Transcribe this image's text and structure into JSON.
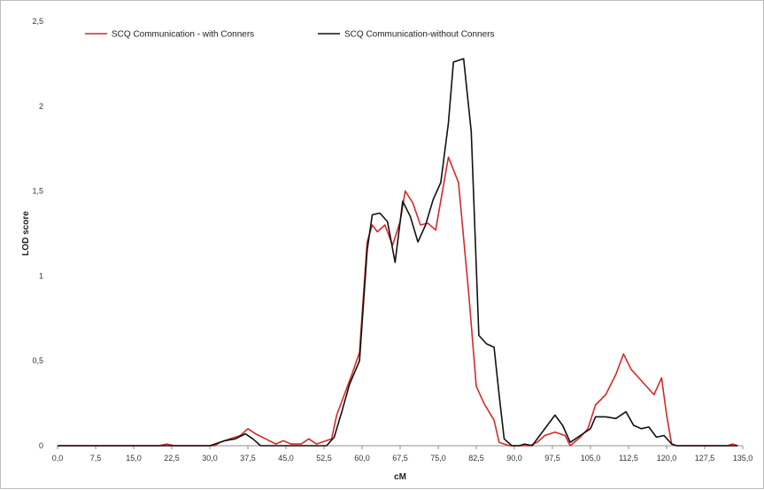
{
  "chart_data": {
    "type": "line",
    "xlabel": "cM",
    "ylabel": "LOD score",
    "xlim": [
      0,
      135
    ],
    "ylim": [
      0,
      2.5
    ],
    "x_ticks": [
      0,
      7.5,
      15,
      22.5,
      30,
      37.5,
      45,
      52.5,
      60,
      67.5,
      75,
      82.5,
      90,
      97.5,
      105,
      112.5,
      120,
      127.5,
      135
    ],
    "x_tick_labels": [
      "0,0",
      "7,5",
      "15,0",
      "22,5",
      "30,0",
      "37,5",
      "45,0",
      "52,5",
      "60,0",
      "67,5",
      "75,0",
      "82,5",
      "90,0",
      "97,5",
      "105,0",
      "112,5",
      "120,0",
      "127,5",
      "135,0"
    ],
    "y_ticks": [
      0,
      0.5,
      1,
      1.5,
      2,
      2.5
    ],
    "y_tick_labels": [
      "0",
      "0,5",
      "1",
      "1,5",
      "2",
      "2,5"
    ],
    "grid": false,
    "legend_position": "top-left",
    "series": [
      {
        "name": "SCQ Communication - with Conners",
        "color": "#d42a2a",
        "points": [
          [
            0,
            0
          ],
          [
            20,
            0
          ],
          [
            21.5,
            0.01
          ],
          [
            23,
            0
          ],
          [
            31,
            0
          ],
          [
            32,
            0.02
          ],
          [
            34,
            0.04
          ],
          [
            36,
            0.06
          ],
          [
            37.5,
            0.1
          ],
          [
            39,
            0.07
          ],
          [
            41,
            0.04
          ],
          [
            43,
            0.01
          ],
          [
            44.5,
            0.03
          ],
          [
            46,
            0.01
          ],
          [
            48,
            0.01
          ],
          [
            49.5,
            0.04
          ],
          [
            51,
            0.01
          ],
          [
            53,
            0.03
          ],
          [
            54,
            0.04
          ],
          [
            55,
            0.18
          ],
          [
            56.5,
            0.3
          ],
          [
            58,
            0.42
          ],
          [
            59.5,
            0.55
          ],
          [
            61,
            1.2
          ],
          [
            62,
            1.3
          ],
          [
            63,
            1.26
          ],
          [
            64.5,
            1.3
          ],
          [
            66,
            1.18
          ],
          [
            67.5,
            1.32
          ],
          [
            68.5,
            1.5
          ],
          [
            70,
            1.43
          ],
          [
            71.5,
            1.3
          ],
          [
            73,
            1.31
          ],
          [
            74.5,
            1.27
          ],
          [
            77,
            1.7
          ],
          [
            79,
            1.55
          ],
          [
            81,
            0.9
          ],
          [
            82.5,
            0.35
          ],
          [
            84,
            0.25
          ],
          [
            86,
            0.15
          ],
          [
            87,
            0.02
          ],
          [
            89,
            0
          ],
          [
            93,
            0
          ],
          [
            94.5,
            0.02
          ],
          [
            96,
            0.06
          ],
          [
            98,
            0.08
          ],
          [
            100,
            0.06
          ],
          [
            101,
            0
          ],
          [
            103,
            0.05
          ],
          [
            104.5,
            0.1
          ],
          [
            106,
            0.24
          ],
          [
            108,
            0.3
          ],
          [
            110,
            0.42
          ],
          [
            111.5,
            0.54
          ],
          [
            113,
            0.45
          ],
          [
            114.5,
            0.4
          ],
          [
            116,
            0.35
          ],
          [
            117.5,
            0.3
          ],
          [
            119,
            0.4
          ],
          [
            120,
            0.18
          ],
          [
            121,
            0.01
          ],
          [
            122,
            0
          ],
          [
            132,
            0
          ],
          [
            133,
            0.01
          ],
          [
            134,
            0
          ]
        ]
      },
      {
        "name": "SCQ Communication-without Conners",
        "color": "#111111",
        "points": [
          [
            0,
            0
          ],
          [
            30,
            0
          ],
          [
            31,
            0.01
          ],
          [
            33,
            0.03
          ],
          [
            35,
            0.04
          ],
          [
            37,
            0.07
          ],
          [
            38.5,
            0.04
          ],
          [
            40,
            0
          ],
          [
            53,
            0
          ],
          [
            54.5,
            0.05
          ],
          [
            56,
            0.2
          ],
          [
            57.5,
            0.36
          ],
          [
            59.5,
            0.5
          ],
          [
            61,
            1.15
          ],
          [
            62,
            1.36
          ],
          [
            63.5,
            1.37
          ],
          [
            65,
            1.32
          ],
          [
            66.5,
            1.08
          ],
          [
            68,
            1.44
          ],
          [
            69.5,
            1.35
          ],
          [
            71,
            1.2
          ],
          [
            72.5,
            1.3
          ],
          [
            74,
            1.45
          ],
          [
            75.5,
            1.55
          ],
          [
            77,
            1.9
          ],
          [
            78,
            2.26
          ],
          [
            80,
            2.28
          ],
          [
            81.5,
            1.85
          ],
          [
            83,
            0.65
          ],
          [
            84.5,
            0.6
          ],
          [
            86,
            0.58
          ],
          [
            87,
            0.3
          ],
          [
            88,
            0.04
          ],
          [
            89.5,
            0
          ],
          [
            91,
            0
          ],
          [
            92,
            0.01
          ],
          [
            93.5,
            0
          ],
          [
            95,
            0.06
          ],
          [
            96.5,
            0.12
          ],
          [
            98,
            0.18
          ],
          [
            99.5,
            0.12
          ],
          [
            101,
            0.02
          ],
          [
            103,
            0.06
          ],
          [
            105,
            0.1
          ],
          [
            106,
            0.17
          ],
          [
            108,
            0.17
          ],
          [
            110,
            0.16
          ],
          [
            112,
            0.2
          ],
          [
            113.5,
            0.12
          ],
          [
            115,
            0.1
          ],
          [
            116.5,
            0.11
          ],
          [
            118,
            0.05
          ],
          [
            119.5,
            0.06
          ],
          [
            121,
            0.01
          ],
          [
            122,
            0
          ],
          [
            134,
            0
          ]
        ]
      }
    ]
  }
}
